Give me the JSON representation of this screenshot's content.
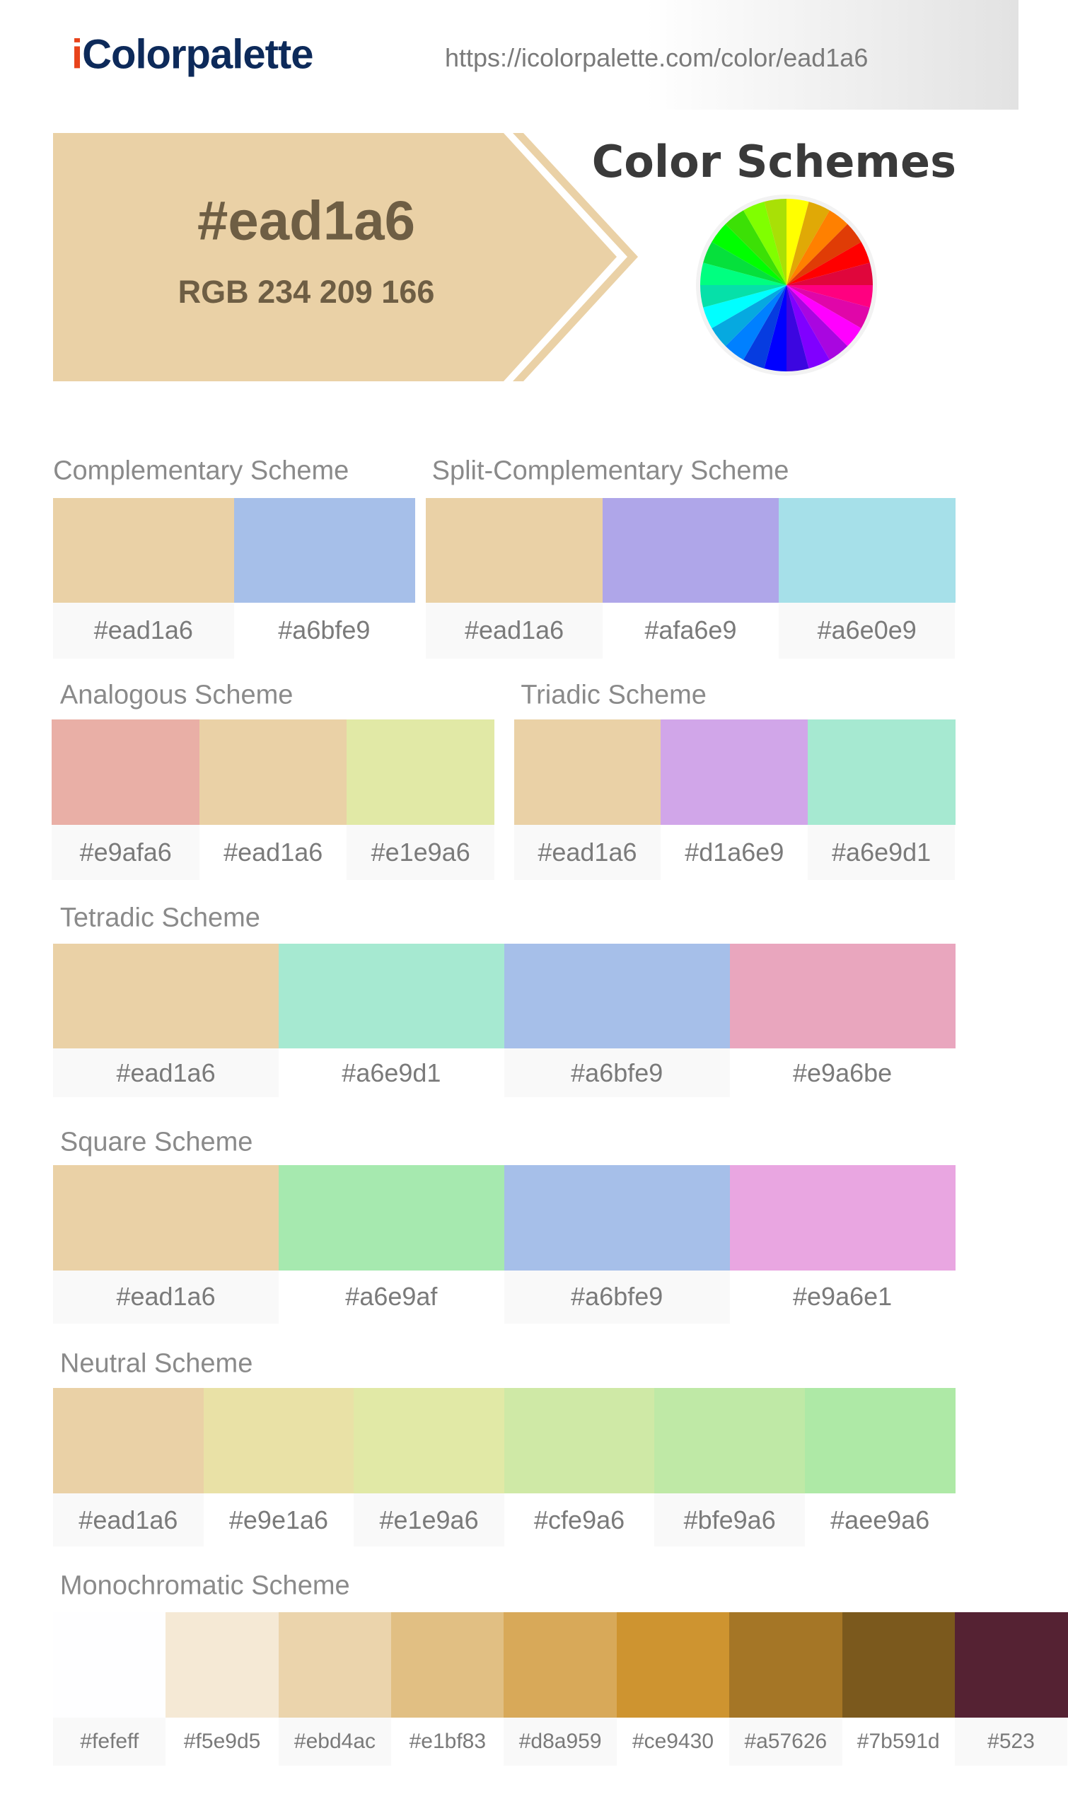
{
  "header": {
    "logo": "iColorpalette",
    "url": "https://icolorpalette.com/color/ead1a6"
  },
  "hero": {
    "hex": "#ead1a6",
    "rgb": "RGB 234 209 166"
  },
  "color_schemes_title": "Color Schemes",
  "schemes": [
    {
      "title": "Complementary Scheme",
      "colors": [
        "#ead1a6",
        "#a6bfe9"
      ]
    },
    {
      "title": "Split-Complementary Scheme",
      "colors": [
        "#ead1a6",
        "#afa6e9",
        "#a6e0e9"
      ]
    },
    {
      "title": "Analogous Scheme",
      "colors": [
        "#e9afa6",
        "#ead1a6",
        "#e1e9a6"
      ]
    },
    {
      "title": "Triadic Scheme",
      "colors": [
        "#ead1a6",
        "#d1a6e9",
        "#a6e9d1"
      ]
    },
    {
      "title": "Tetradic Scheme",
      "colors": [
        "#ead1a6",
        "#a6e9d1",
        "#a6bfe9",
        "#e9a6be"
      ]
    },
    {
      "title": "Square Scheme",
      "colors": [
        "#ead1a6",
        "#a6e9af",
        "#a6bfe9",
        "#e9a6e1"
      ]
    },
    {
      "title": "Neutral Scheme",
      "colors": [
        "#ead1a6",
        "#e9e1a6",
        "#e1e9a6",
        "#cfe9a6",
        "#bfe9a6",
        "#aee9a6"
      ]
    },
    {
      "title": "Monochromatic Scheme",
      "colors": [
        "#fefeff",
        "#f5e9d5",
        "#ebd4ac",
        "#e1bf83",
        "#d8a959",
        "#ce9430",
        "#a57626",
        "#7b591d",
        "#523"
      ]
    }
  ]
}
